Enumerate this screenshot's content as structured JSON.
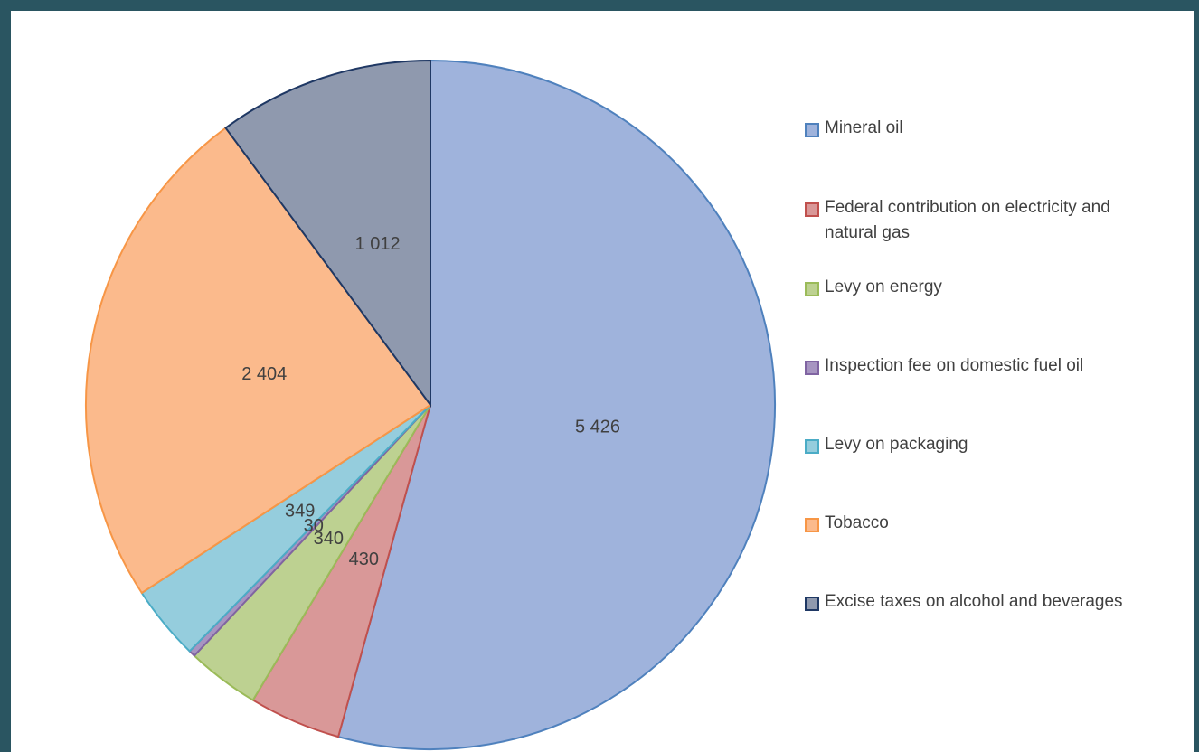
{
  "chart_data": {
    "type": "pie",
    "categories": [
      "Mineral oil",
      "Federal contribution on electricity and natural gas",
      "Levy on energy",
      "Inspection fee on domestic fuel oil",
      "Levy on packaging",
      "Tobacco",
      "Excise taxes on alcohol and beverages"
    ],
    "values": [
      5426,
      430,
      340,
      30,
      349,
      2404,
      1012
    ],
    "value_labels": [
      "5 426",
      "430",
      "340",
      "30",
      "349",
      "2 404",
      "1 012"
    ],
    "colors": [
      "#9fb3dc",
      "#d99898",
      "#bdd191",
      "#a795c1",
      "#95cddd",
      "#fbba8c",
      "#8f99ae"
    ],
    "border_colors": [
      "#4f81bd",
      "#c0504d",
      "#9bbb59",
      "#8064a2",
      "#4bacc6",
      "#f79646",
      "#1f3864"
    ],
    "legend": "right"
  }
}
